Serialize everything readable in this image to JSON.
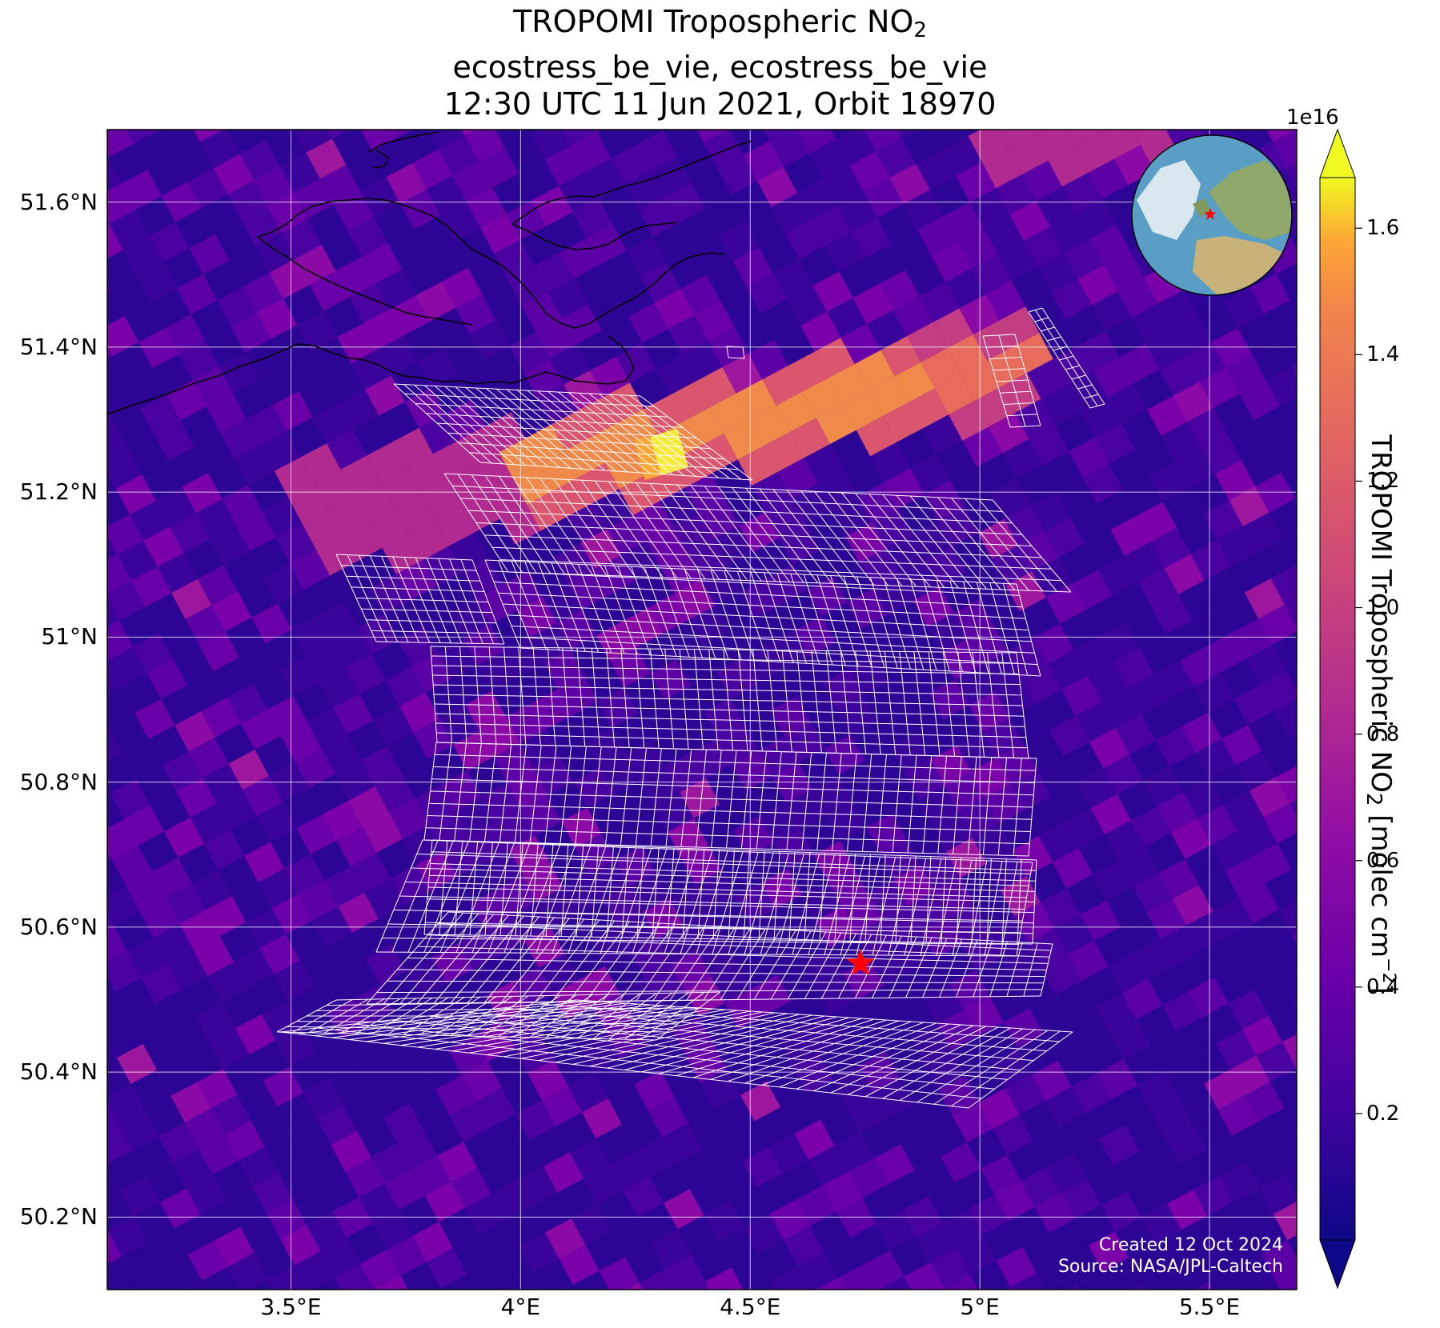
{
  "title": {
    "line1_prefix": "TROPOMI Tropospheric NO",
    "line1_sub": "2",
    "line2": "ecostress_be_vie, ecostress_be_vie",
    "line3": "12:30 UTC 11 Jun 2021, Orbit 18970"
  },
  "map": {
    "lon_range": [
      3.1,
      5.69
    ],
    "lat_range": [
      50.1,
      51.7
    ],
    "lat_labels": [
      {
        "lat": 51.6,
        "text": "51.6°N"
      },
      {
        "lat": 51.4,
        "text": "51.4°N"
      },
      {
        "lat": 51.2,
        "text": "51.2°N"
      },
      {
        "lat": 51.0,
        "text": "51°N"
      },
      {
        "lat": 50.8,
        "text": "50.8°N"
      },
      {
        "lat": 50.6,
        "text": "50.6°N"
      },
      {
        "lat": 50.4,
        "text": "50.4°N"
      },
      {
        "lat": 50.2,
        "text": "50.2°N"
      }
    ],
    "lon_labels": [
      {
        "lon": 3.5,
        "text": "3.5°E"
      },
      {
        "lon": 4.0,
        "text": "4°E"
      },
      {
        "lon": 4.5,
        "text": "4.5°E"
      },
      {
        "lon": 5.0,
        "text": "5°E"
      },
      {
        "lon": 5.5,
        "text": "5.5°E"
      }
    ],
    "site_marker": {
      "lon": 4.74,
      "lat": 50.55,
      "color": "#ff0000"
    },
    "colormap": "plasma",
    "background_color": "#6a0ba0",
    "plume_color": "#f08a4a",
    "peak_color": "#f6e93a",
    "coastline_color": "#000000",
    "grid_color": "#ffffff"
  },
  "colorbar": {
    "ticks": [
      {
        "value": 0.2,
        "text": "0.2"
      },
      {
        "value": 0.4,
        "text": "0.4"
      },
      {
        "value": 0.6,
        "text": "0.6"
      },
      {
        "value": 0.8,
        "text": "0.8"
      },
      {
        "value": 1.0,
        "text": "1.0"
      },
      {
        "value": 1.2,
        "text": "1.2"
      },
      {
        "value": 1.4,
        "text": "1.4"
      },
      {
        "value": 1.6,
        "text": "1.6"
      }
    ],
    "range": [
      0.0,
      1.68
    ],
    "exponent": "1e16",
    "label_prefix": "TROPOMI Tropospheric NO",
    "label_sub": "2",
    "label_mid": " [molec cm",
    "label_sup": "−2",
    "label_suffix": "]"
  },
  "credits": {
    "line1": "Created 12 Oct 2024",
    "line2": "Source: NASA/JPL-Caltech"
  }
}
